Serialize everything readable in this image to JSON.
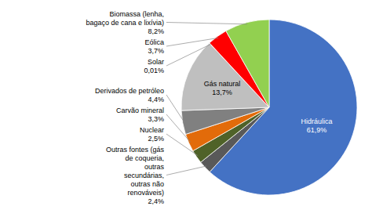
{
  "chart_data": {
    "type": "pie",
    "categories": [
      "Hidráulica",
      "Outras fontes (gás\nde coqueria,\noutras\nsecundárias,\noutras não\nrenováveis)",
      "Nuclear",
      "Carvão mineral",
      "Derivados de petróleo",
      "Gás natural",
      "Solar",
      "Eólica",
      "Biomassa (lenha,\nbagaço de cana e lixívia)"
    ],
    "values": [
      61.9,
      2.4,
      2.5,
      3.3,
      4.4,
      13.7,
      0.01,
      3.7,
      8.2
    ],
    "value_labels": [
      "61,9%",
      "2,4%",
      "2,5%",
      "3,3%",
      "4,4%",
      "13,7%",
      "0,01%",
      "3,7%",
      "8,2%"
    ],
    "colors": [
      "#4472C4",
      "#595959",
      "#4F6228",
      "#E26B0A",
      "#808080",
      "#BFBFBF",
      "#BFBFBF",
      "#FF0000",
      "#92D050"
    ]
  }
}
